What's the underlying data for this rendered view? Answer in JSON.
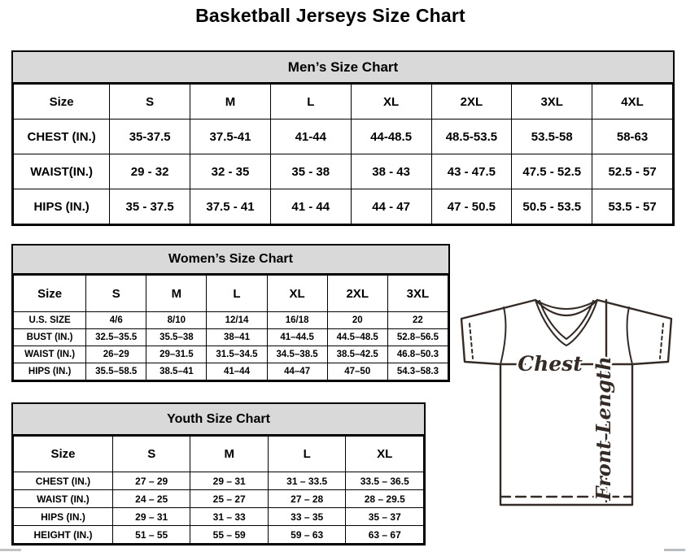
{
  "page": {
    "title": "Basketball Jerseys Size Chart"
  },
  "mens": {
    "title": "Men’s Size Chart",
    "columns": [
      "Size",
      "S",
      "M",
      "L",
      "XL",
      "2XL",
      "3XL",
      "4XL"
    ],
    "rows": [
      {
        "label": "CHEST (IN.)",
        "values": [
          "35-37.5",
          "37.5-41",
          "41-44",
          "44-48.5",
          "48.5-53.5",
          "53.5-58",
          "58-63"
        ]
      },
      {
        "label": "WAIST(IN.)",
        "values": [
          "29 - 32",
          "32 - 35",
          "35 - 38",
          "38 - 43",
          "43 - 47.5",
          "47.5 - 52.5",
          "52.5 - 57"
        ]
      },
      {
        "label": "HIPS (IN.)",
        "values": [
          "35 - 37.5",
          "37.5 - 41",
          "41 - 44",
          "44 - 47",
          "47 - 50.5",
          "50.5 - 53.5",
          "53.5 - 57"
        ]
      }
    ]
  },
  "womens": {
    "title": "Women’s Size Chart",
    "columns": [
      "Size",
      "S",
      "M",
      "L",
      "XL",
      "2XL",
      "3XL"
    ],
    "rows": [
      {
        "label": "U.S. SIZE",
        "values": [
          "4/6",
          "8/10",
          "12/14",
          "16/18",
          "20",
          "22"
        ]
      },
      {
        "label": "BUST (IN.)",
        "values": [
          "32.5–35.5",
          "35.5–38",
          "38–41",
          "41–44.5",
          "44.5–48.5",
          "52.8–56.5"
        ]
      },
      {
        "label": "WAIST (IN.)",
        "values": [
          "26–29",
          "29–31.5",
          "31.5–34.5",
          "34.5–38.5",
          "38.5–42.5",
          "46.8–50.3"
        ]
      },
      {
        "label": "HIPS (IN.)",
        "values": [
          "35.5–58.5",
          "38.5–41",
          "41–44",
          "44–47",
          "47–50",
          "54.3–58.3"
        ]
      }
    ]
  },
  "youth": {
    "title": "Youth Size Chart",
    "columns": [
      "Size",
      "S",
      "M",
      "L",
      "XL"
    ],
    "rows": [
      {
        "label": "CHEST (IN.)",
        "values": [
          "27 – 29",
          "29 – 31",
          "31 – 33.5",
          "33.5 – 36.5"
        ]
      },
      {
        "label": "WAIST (IN.)",
        "values": [
          "24 – 25",
          "25 – 27",
          "27 – 28",
          "28 – 29.5"
        ]
      },
      {
        "label": "HIPS (IN.)",
        "values": [
          "29 – 31",
          "31 – 33",
          "33 – 35",
          "35 – 37"
        ]
      },
      {
        "label": "HEIGHT (IN.)",
        "values": [
          "51 – 55",
          "55 – 59",
          "59 – 63",
          "63 – 67"
        ]
      }
    ]
  },
  "diagram": {
    "chest_label": "Chest",
    "front_length_label": "Front Length"
  },
  "colors": {
    "header_band": "#d9d9d9",
    "table_border": "#000000",
    "diagram_stroke": "#342b27"
  }
}
